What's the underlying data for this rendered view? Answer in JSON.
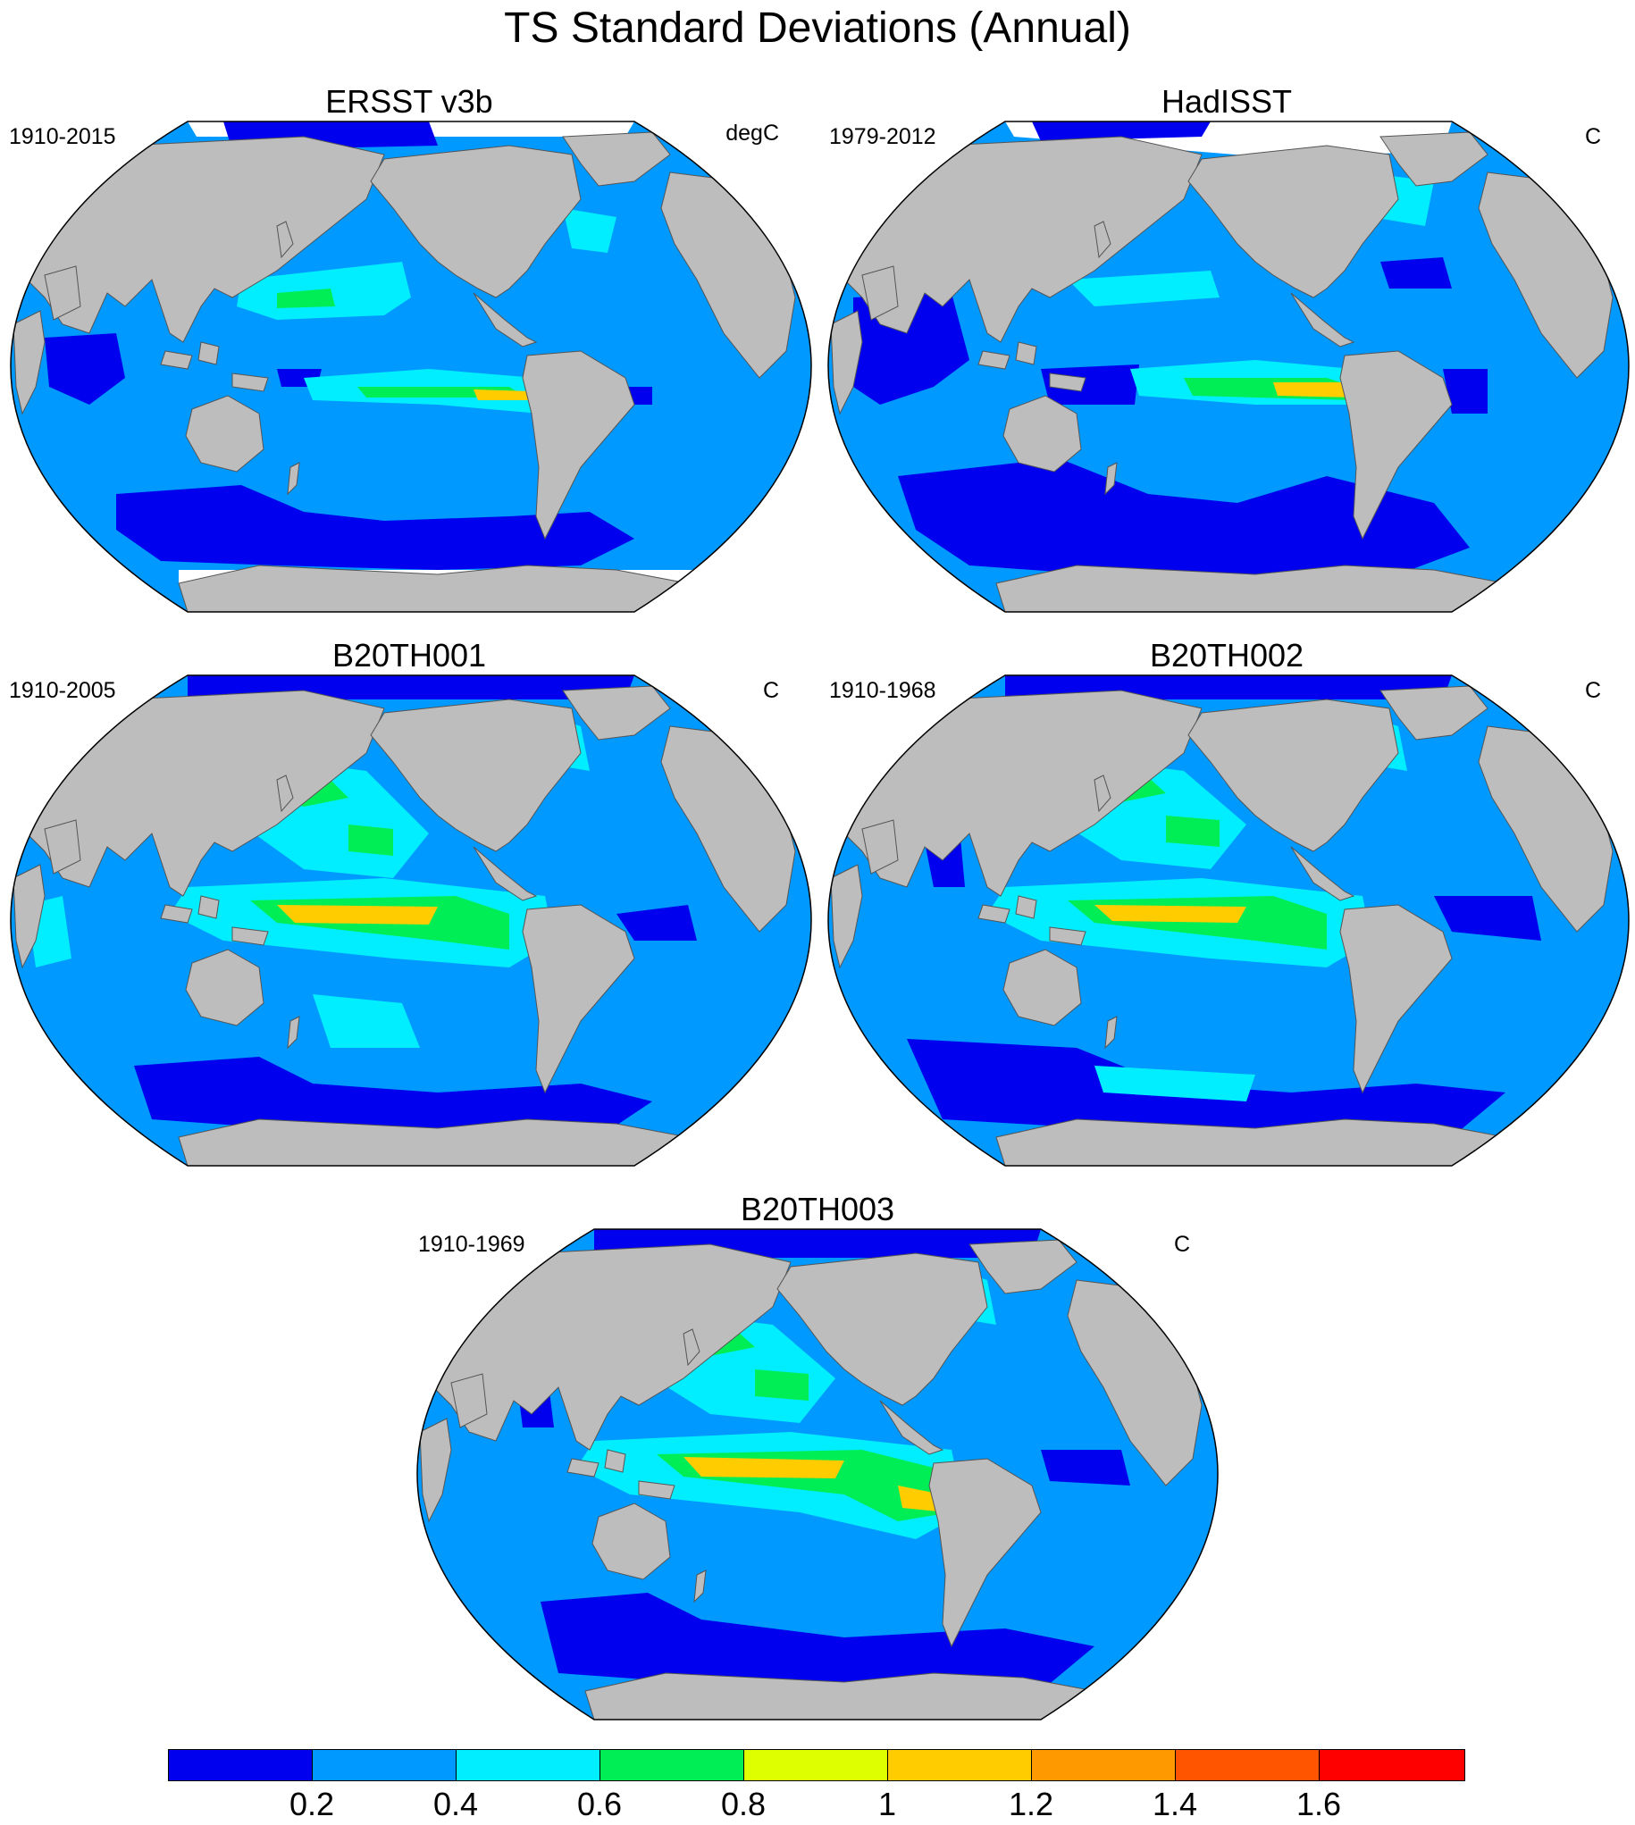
{
  "title": "TS Standard Deviations (Annual)",
  "panels": [
    {
      "name": "ERSST v3b",
      "period": "1910-2015",
      "units": "degC"
    },
    {
      "name": "HadISST",
      "period": "1979-2012",
      "units": "C"
    },
    {
      "name": "B20TH001",
      "period": "1910-2005",
      "units": "C"
    },
    {
      "name": "B20TH002",
      "period": "1910-1968",
      "units": "C"
    },
    {
      "name": "B20TH003",
      "period": "1910-1969",
      "units": "C"
    }
  ],
  "colorbar": {
    "colors": [
      "#0000ee",
      "#0099ff",
      "#00eeff",
      "#00ee55",
      "#ddff00",
      "#ffcc00",
      "#ff9900",
      "#ff5500",
      "#ff0000"
    ],
    "tick_labels": [
      "0.2",
      "0.4",
      "0.6",
      "0.8",
      "1",
      "1.2",
      "1.4",
      "1.6"
    ]
  },
  "colors": {
    "land": "#bdbdbd",
    "missing": "#ffffff",
    "background_ocean": "#0099ff"
  }
}
